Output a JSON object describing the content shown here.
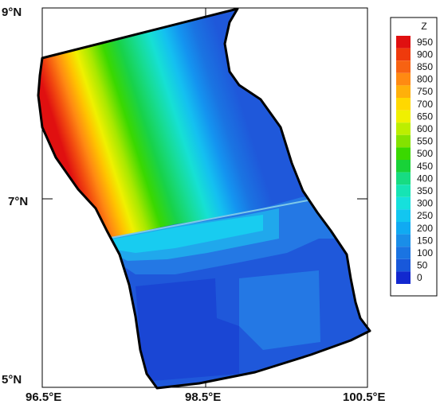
{
  "axes": {
    "y_ticks": [
      "9°N",
      "7°N",
      "5°N"
    ],
    "x_ticks": [
      "96.5°E",
      "98.5°E",
      "100.5°E"
    ]
  },
  "legend": {
    "title": "Z",
    "levels": [
      "950",
      "900",
      "850",
      "800",
      "750",
      "700",
      "650",
      "600",
      "550",
      "500",
      "450",
      "400",
      "350",
      "300",
      "250",
      "200",
      "150",
      "100",
      "50",
      "0"
    ],
    "colors": [
      "#e01010",
      "#ef3a0c",
      "#f76212",
      "#ff8a12",
      "#ffb00a",
      "#ffd800",
      "#f0f000",
      "#bcee00",
      "#84e200",
      "#3ad800",
      "#18d238",
      "#17dc82",
      "#16e4b4",
      "#16e0dc",
      "#12c6f0",
      "#10aaf2",
      "#1a8ee8",
      "#1a74e2",
      "#1858da",
      "#1228cf"
    ]
  },
  "map": {
    "lon_range": [
      96.5,
      100.5
    ],
    "lat_range": [
      5,
      9
    ],
    "variable": "Z",
    "colors": {
      "dark_blue": "#1f58da",
      "mid_blue": "#2478e4",
      "light_blue": "#20a8ec",
      "cyan": "#18ccf0"
    }
  }
}
